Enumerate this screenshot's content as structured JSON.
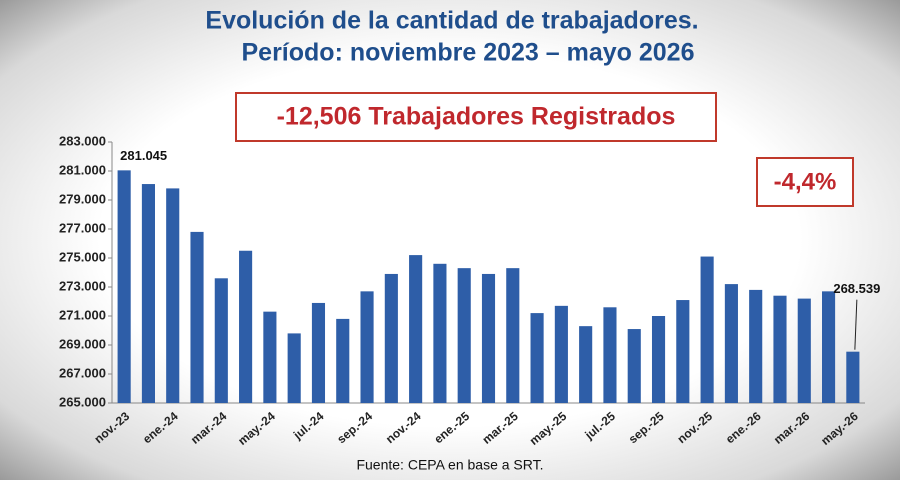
{
  "chart_data": {
    "type": "bar",
    "title": "Evolución de la cantidad de trabajadores.",
    "subtitle": "Período: noviembre 2023 – mayo 2026",
    "annotations": [
      "-12,506 Trabajadores Registrados",
      "-4,4%"
    ],
    "source": "Fuente: CEPA en base a SRT.",
    "categories": [
      "nov.-23",
      null,
      "ene.-24",
      null,
      "mar.-24",
      null,
      "may.-24",
      null,
      "jul.-24",
      null,
      "sep.-24",
      null,
      "nov.-24",
      null,
      "ene.-25",
      null,
      "mar.-25",
      null,
      "may.-25",
      null,
      "jul.-25",
      null,
      "sep.-25",
      null,
      "nov.-25",
      null,
      "ene.-26",
      null,
      "mar.-26",
      null,
      "may.-26"
    ],
    "values": [
      281045,
      280100,
      279800,
      276800,
      273600,
      275500,
      271300,
      269800,
      271900,
      270800,
      272700,
      273900,
      275200,
      274600,
      274300,
      273900,
      274300,
      271200,
      271700,
      270300,
      271600,
      270100,
      271000,
      272100,
      275100,
      273200,
      272800,
      272400,
      272200,
      272700,
      268539
    ],
    "value_labels": [
      "281.045",
      null,
      null,
      null,
      null,
      null,
      null,
      null,
      null,
      null,
      null,
      null,
      null,
      null,
      null,
      null,
      null,
      null,
      null,
      null,
      null,
      null,
      null,
      null,
      null,
      null,
      null,
      null,
      null,
      null,
      "268.539"
    ],
    "color": "#2e5ea8",
    "ylim": [
      265000,
      283000
    ],
    "yticks": [
      {
        "value": 265000,
        "label": "265.000"
      },
      {
        "value": 267000,
        "label": "267.000"
      },
      {
        "value": 269000,
        "label": "269.000"
      },
      {
        "value": 271000,
        "label": "271.000"
      },
      {
        "value": 273000,
        "label": "273.000"
      },
      {
        "value": 275000,
        "label": "275.000"
      },
      {
        "value": 277000,
        "label": "277.000"
      },
      {
        "value": 279000,
        "label": "279.000"
      },
      {
        "value": 281000,
        "label": "281.000"
      },
      {
        "value": 283000,
        "label": "283.000"
      }
    ],
    "grid": false
  }
}
